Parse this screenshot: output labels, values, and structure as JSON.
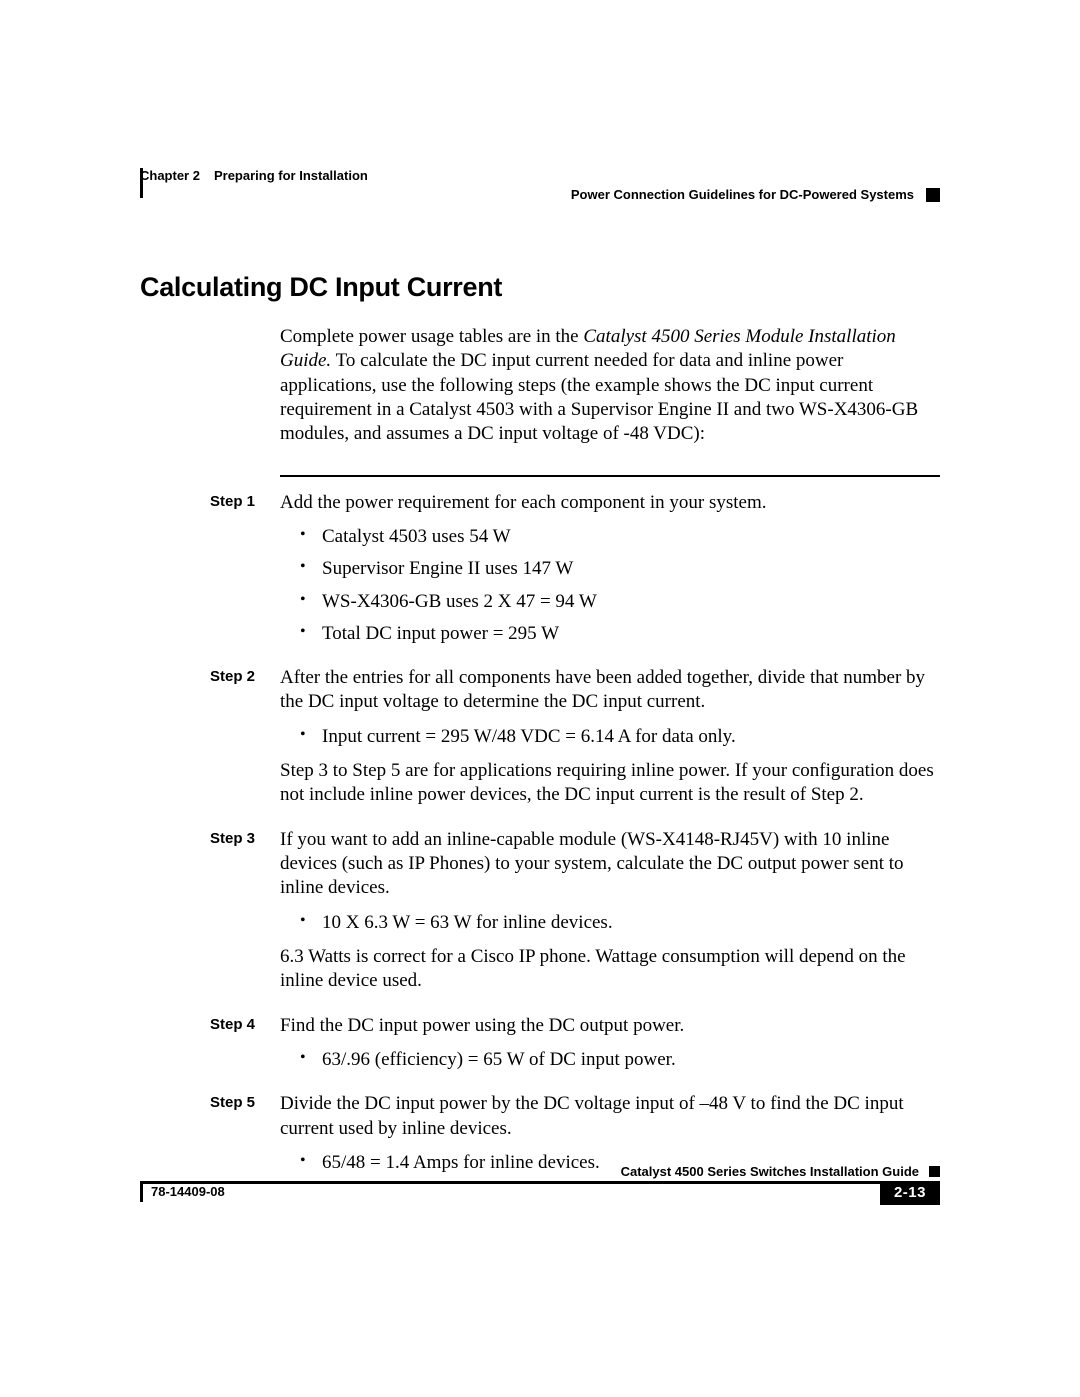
{
  "header": {
    "chapter": "Chapter 2",
    "chapter_title": "Preparing for Installation",
    "section_right": "Power Connection Guidelines for DC-Powered Systems"
  },
  "title": "Calculating DC Input Current",
  "intro": {
    "lead_plain": "Complete power usage tables are in the ",
    "lead_italic": "Catalyst 4500 Series Module Installation Guide.",
    "rest": " To calculate the DC input current needed for data and inline power applications, use the following steps (the example shows the DC input current requirement in a Catalyst 4503 with a Supervisor Engine II and two WS-X4306-GB modules, and assumes a DC input voltage of -48 VDC):"
  },
  "steps": [
    {
      "label": "Step 1",
      "text": "Add the power requirement for each component in your system.",
      "bullets": [
        "Catalyst 4503 uses 54 W",
        "Supervisor Engine II uses 147 W",
        "WS-X4306-GB uses 2 X 47 = 94 W",
        "Total DC input power = 295 W"
      ]
    },
    {
      "label": "Step 2",
      "text": "After the entries for all components have been added together, divide that number by the DC input voltage to determine the DC input current.",
      "bullets": [
        "Input current = 295 W/48 VDC = 6.14 A for data only."
      ],
      "after": "Step 3 to Step 5 are for applications requiring inline power. If your configuration does not include inline power devices, the DC input current is the result of Step 2."
    },
    {
      "label": "Step 3",
      "text": "If you want to add an inline-capable module (WS-X4148-RJ45V) with 10 inline devices (such as IP Phones) to your system, calculate the DC output power sent to inline devices.",
      "bullets": [
        "10 X 6.3 W = 63 W for inline devices."
      ],
      "after": "6.3 Watts is correct for a Cisco IP phone. Wattage consumption will depend on the inline device used."
    },
    {
      "label": "Step 4",
      "text": "Find the DC input power using the DC output power.",
      "bullets": [
        "63/.96 (efficiency) = 65 W of DC input power."
      ]
    },
    {
      "label": "Step 5",
      "text": "Divide the DC input power by the DC voltage input of –48 V to find the DC input current used by inline devices.",
      "bullets": [
        "65/48 = 1.4 Amps for inline devices."
      ]
    }
  ],
  "footer": {
    "guide_title": "Catalyst 4500 Series Switches Installation Guide",
    "doc_num": "78-14409-08",
    "page_num": "2-13"
  }
}
